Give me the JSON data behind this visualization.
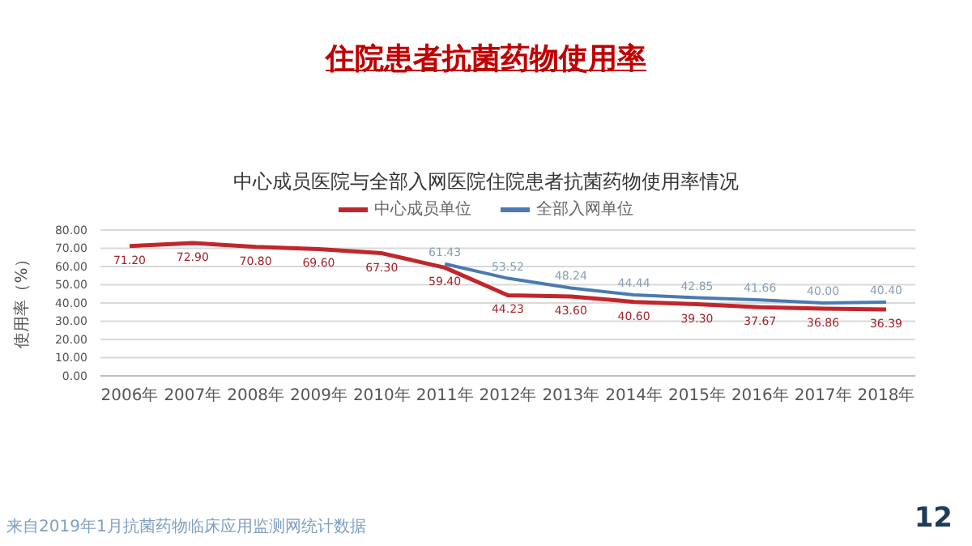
{
  "chart_data": {
    "type": "line",
    "title": "住院患者抗菌药物使用率",
    "subtitle": "中心成员医院与全部入网医院住院患者抗菌药物使用率情况",
    "ylabel": "使用率（%）",
    "categories": [
      "2006年",
      "2007年",
      "2008年",
      "2009年",
      "2010年",
      "2011年",
      "2012年",
      "2013年",
      "2014年",
      "2015年",
      "2016年",
      "2017年",
      "2018年"
    ],
    "series": [
      {
        "name": "中心成员单位",
        "color": "#c0272d",
        "values": [
          71.2,
          72.9,
          70.8,
          69.6,
          67.3,
          59.4,
          44.23,
          43.6,
          40.6,
          39.3,
          37.67,
          36.86,
          36.39
        ],
        "value_labels": [
          "71.20",
          "72.90",
          "70.80",
          "69.60",
          "67.30",
          "59.40",
          "44.23",
          "43.60",
          "40.60",
          "39.30",
          "37.67",
          "36.86",
          "36.39"
        ]
      },
      {
        "name": "全部入网单位",
        "color": "#4a7ab0",
        "values": [
          null,
          null,
          null,
          null,
          null,
          61.43,
          53.52,
          48.24,
          44.44,
          42.85,
          41.66,
          40.0,
          40.4
        ],
        "value_labels": [
          null,
          null,
          null,
          null,
          null,
          "61.43",
          "53.52",
          "48.24",
          "44.44",
          "42.85",
          "41.66",
          "40.00",
          "40.40"
        ]
      }
    ],
    "ylim": [
      0,
      80
    ],
    "yticks": [
      {
        "value": 0,
        "label": "0.00"
      },
      {
        "value": 10,
        "label": "10.00"
      },
      {
        "value": 20,
        "label": "20.00"
      },
      {
        "value": 30,
        "label": "30.00"
      },
      {
        "value": 40,
        "label": "40.00"
      },
      {
        "value": 50,
        "label": "50.00"
      },
      {
        "value": 60,
        "label": "60.00"
      },
      {
        "value": 70,
        "label": "70.00"
      },
      {
        "value": 80,
        "label": "80.00"
      }
    ],
    "grid": "y",
    "legend": "top",
    "marker": "none",
    "line_style": "solid",
    "annotations": [
      "来自2019年1月抗菌药物临床应用监测网统计数据",
      "12"
    ]
  }
}
